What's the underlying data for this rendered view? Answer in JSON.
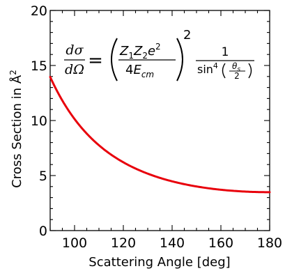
{
  "chart_data": {
    "type": "line",
    "title": "",
    "xlabel": "Scattering Angle [deg]",
    "ylabel_main": "Cross Section in Å",
    "ylabel_sup": "2",
    "xlim": [
      90,
      180
    ],
    "ylim": [
      0,
      20
    ],
    "xticks": [
      100,
      120,
      140,
      160,
      180
    ],
    "yticks": [
      0,
      5,
      10,
      15,
      20
    ],
    "grid": false,
    "legend": "none",
    "series": [
      {
        "color": "#e8000b",
        "formula": "A / sin^4(theta/2)",
        "x": [
          90,
          95,
          100,
          105,
          110,
          115,
          120,
          125,
          130,
          135,
          140,
          145,
          150,
          155,
          160,
          165,
          170,
          175,
          180
        ],
        "y": [
          13.96,
          11.96,
          10.4,
          9.18,
          8.2,
          7.4,
          6.2,
          5.6,
          5.1,
          4.7,
          4.4,
          4.1,
          3.9,
          3.75,
          3.65,
          3.56,
          3.52,
          3.5,
          3.49
        ]
      }
    ],
    "equation": {
      "lhs_num": "dσ",
      "lhs_den": "dΩ",
      "equals": "=",
      "frac_num_Z1": "Z",
      "frac_num_Z1_sub": "1",
      "frac_num_Z2": "Z",
      "frac_num_Z2_sub": "2",
      "frac_num_e": "e",
      "frac_num_e_sup": "2",
      "frac_den_4": "4",
      "frac_den_E": "E",
      "frac_den_E_sub": "cm",
      "outer_exp": "2",
      "rhs_num": "1",
      "rhs_den_sin": "sin",
      "rhs_den_sin_sup": "4",
      "rhs_den_theta": "θ",
      "rhs_den_theta_sub": "s",
      "rhs_den_two": "2"
    }
  }
}
